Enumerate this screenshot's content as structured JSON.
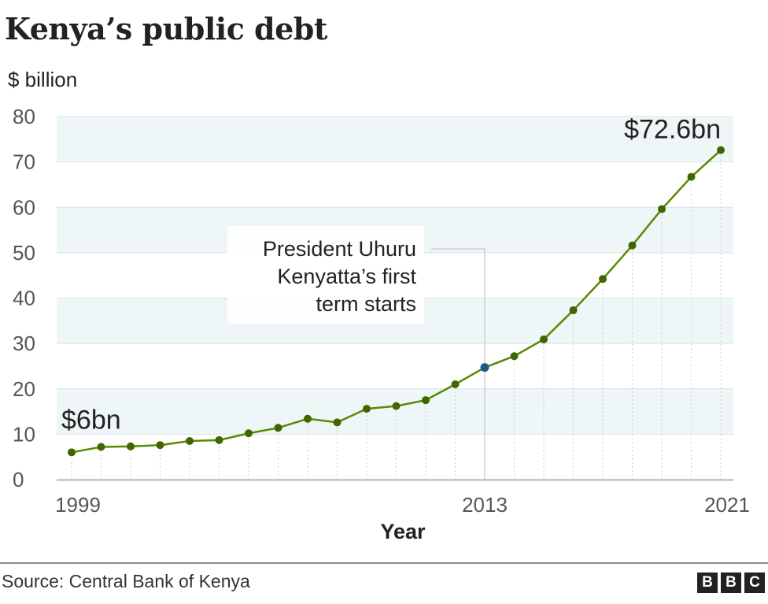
{
  "title": "Kenya’s public debt",
  "footer": {
    "source": "Source: Central Bank of Kenya",
    "logo_letters": [
      "B",
      "B",
      "C"
    ]
  },
  "colors": {
    "line": "#5a8a00",
    "marker": "#3f6600",
    "highlight_marker": "#1d5c86",
    "band": "#eef6f7",
    "grid": "#d8e4e6"
  },
  "chart_data": {
    "type": "line",
    "title": "Kenya’s public debt",
    "ylabel": "$ billion",
    "xlabel": "Year",
    "ylim": [
      0,
      80
    ],
    "yticks": [
      0,
      10,
      20,
      30,
      40,
      50,
      60,
      70,
      80
    ],
    "xlim": [
      1999,
      2021
    ],
    "xtick_labels": [
      "1999",
      "2013",
      "2021"
    ],
    "grid": "alternating horizontal bands",
    "series": [
      {
        "x": [
          1999,
          2000,
          2001,
          2002,
          2003,
          2004,
          2005,
          2006,
          2007,
          2008,
          2009,
          2010,
          2011,
          2012,
          2013,
          2014,
          2015,
          2016,
          2017,
          2018,
          2019,
          2020,
          2021
        ],
        "values": [
          6.0,
          7.2,
          7.3,
          7.6,
          8.5,
          8.7,
          10.2,
          11.4,
          13.4,
          12.6,
          15.6,
          16.2,
          17.5,
          21.0,
          24.7,
          27.2,
          30.9,
          37.3,
          44.2,
          51.6,
          59.6,
          66.7,
          72.6
        ]
      }
    ],
    "highlight": {
      "x": 2013
    },
    "annotations": [
      {
        "text": "$6bn",
        "x": 1999
      },
      {
        "text": "$72.6bn",
        "x": 2021
      },
      {
        "lines": [
          "President Uhuru",
          "Kenyatta’s first",
          "term starts"
        ],
        "x": 2013
      }
    ]
  }
}
